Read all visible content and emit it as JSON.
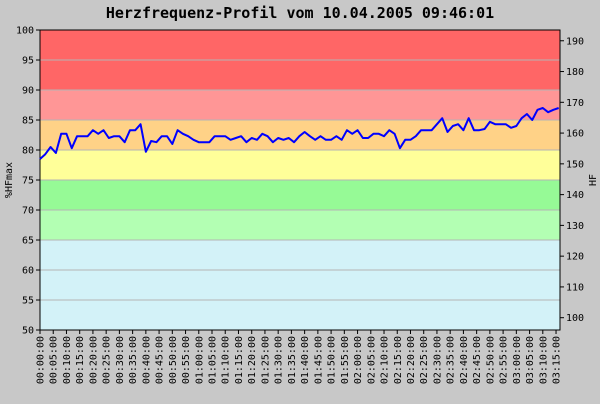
{
  "chart_data": {
    "type": "line",
    "title": "Herzfrequenz-Profil vom 10.04.2005 09:46:01",
    "ylabel": "%HFmax",
    "y2label": "HF",
    "ylim": [
      50,
      100
    ],
    "yticks": [
      50,
      55,
      60,
      65,
      70,
      75,
      80,
      85,
      90,
      95,
      100
    ],
    "y2lim": [
      96,
      193.5
    ],
    "y2ticks": [
      100,
      110,
      120,
      130,
      140,
      150,
      160,
      170,
      180,
      190
    ],
    "xlim_minutes": [
      0,
      196.5
    ],
    "xticks": [
      "00:00:00",
      "00:05:00",
      "00:10:00",
      "00:15:00",
      "00:20:00",
      "00:25:00",
      "00:30:00",
      "00:35:00",
      "00:40:00",
      "00:45:00",
      "00:50:00",
      "00:55:00",
      "01:00:00",
      "01:05:00",
      "01:10:00",
      "01:15:00",
      "01:20:00",
      "01:25:00",
      "01:30:00",
      "01:35:00",
      "01:40:00",
      "01:45:00",
      "01:50:00",
      "01:55:00",
      "02:00:00",
      "02:05:00",
      "02:10:00",
      "02:15:00",
      "02:20:00",
      "02:25:00",
      "02:30:00",
      "02:35:00",
      "02:40:00",
      "02:45:00",
      "02:50:00",
      "02:55:00",
      "03:00:00",
      "03:05:00",
      "03:10:00",
      "03:15:00"
    ],
    "zones": [
      {
        "from": 50,
        "to": 65,
        "color": "#d3f2f8"
      },
      {
        "from": 65,
        "to": 70,
        "color": "#b3ffb3"
      },
      {
        "from": 70,
        "to": 75,
        "color": "#96fa96"
      },
      {
        "from": 75,
        "to": 80,
        "color": "#ffff99"
      },
      {
        "from": 80,
        "to": 85,
        "color": "#ffd287"
      },
      {
        "from": 85,
        "to": 90,
        "color": "#ff9696"
      },
      {
        "from": 90,
        "to": 100,
        "color": "#ff6666"
      }
    ],
    "grid": true,
    "line_color": "#0000ff",
    "series": [
      {
        "x": [
          0,
          2,
          4,
          6,
          8,
          10,
          12,
          14,
          16,
          18,
          20,
          22,
          24,
          26,
          28,
          30,
          32,
          34,
          36,
          38,
          40,
          42,
          44,
          46,
          48,
          50,
          52,
          54,
          56,
          58,
          60,
          62,
          64,
          66,
          68,
          70,
          72,
          74,
          76,
          78,
          80,
          82,
          84,
          86,
          88,
          90,
          92,
          94,
          96,
          98,
          100,
          102,
          104,
          106,
          108,
          110,
          112,
          114,
          116,
          118,
          120,
          122,
          124,
          126,
          128,
          130,
          132,
          134,
          136,
          138,
          140,
          142,
          144,
          146,
          148,
          150,
          152,
          154,
          156,
          158,
          160,
          162,
          164,
          166,
          168,
          170,
          172,
          174,
          176,
          178,
          180,
          182,
          184,
          186,
          188,
          190,
          192,
          194,
          196
        ],
        "values": [
          78.5,
          79.3,
          80.5,
          79.5,
          82.7,
          82.7,
          80.3,
          82.3,
          82.3,
          82.3,
          83.3,
          82.7,
          83.3,
          82.0,
          82.3,
          82.3,
          81.3,
          83.3,
          83.3,
          84.3,
          79.7,
          81.5,
          81.3,
          82.3,
          82.3,
          81.0,
          83.3,
          82.7,
          82.3,
          81.7,
          81.3,
          81.3,
          81.3,
          82.3,
          82.3,
          82.3,
          81.7,
          82.0,
          82.3,
          81.3,
          82.0,
          81.7,
          82.7,
          82.3,
          81.3,
          82.0,
          81.7,
          82.0,
          81.3,
          82.3,
          83.0,
          82.3,
          81.7,
          82.3,
          81.7,
          81.7,
          82.3,
          81.7,
          83.3,
          82.7,
          83.3,
          82.0,
          82.0,
          82.7,
          82.7,
          82.3,
          83.3,
          82.7,
          80.3,
          81.7,
          81.7,
          82.3,
          83.3,
          83.3,
          83.3,
          84.3,
          85.3,
          83.0,
          84.0,
          84.3,
          83.3,
          85.3,
          83.3,
          83.3,
          83.5,
          84.7,
          84.3,
          84.3,
          84.3,
          83.7,
          84.0,
          85.3,
          86.0,
          85.0,
          86.7,
          87.0,
          86.3,
          86.7,
          87.0
        ]
      }
    ]
  }
}
